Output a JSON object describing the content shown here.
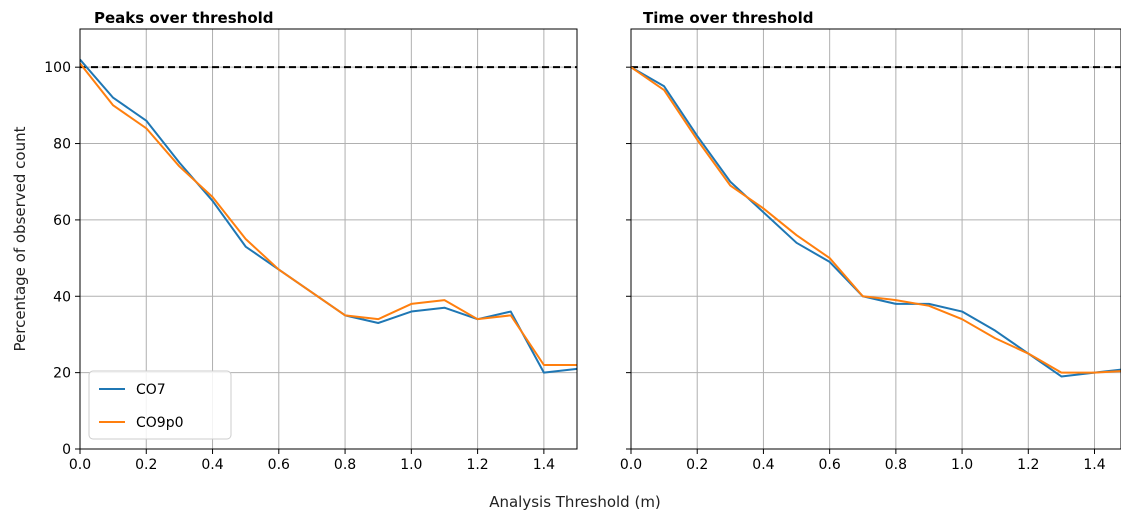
{
  "figure": {
    "shared_xlabel": "Analysis Threshold (m)",
    "shared_ylabel": "Percentage of observed count"
  },
  "legend": {
    "placement": "lower-left",
    "entries": [
      {
        "name": "CO7",
        "color": "#1f77b4"
      },
      {
        "name": "CO9p0",
        "color": "#ff7f0e"
      }
    ]
  },
  "chart_data": [
    {
      "type": "line",
      "title": "Peaks over threshold",
      "xlim": [
        0,
        1.5
      ],
      "ylim": [
        0,
        110
      ],
      "xticks": [
        "0.0",
        "0.2",
        "0.4",
        "0.6",
        "0.8",
        "1.0",
        "1.2",
        "1.4"
      ],
      "yticks": [
        "0",
        "20",
        "40",
        "60",
        "80",
        "100"
      ],
      "grid": true,
      "reference_line": {
        "y": 100,
        "style": "dashed",
        "color": "#000000"
      },
      "x": [
        0.0,
        0.1,
        0.2,
        0.3,
        0.4,
        0.5,
        0.6,
        0.7,
        0.8,
        0.9,
        1.0,
        1.1,
        1.2,
        1.3,
        1.4,
        1.5
      ],
      "series": [
        {
          "name": "CO7",
          "color": "#1f77b4",
          "values": [
            102,
            92,
            86,
            75,
            65,
            53,
            47,
            41,
            35,
            33,
            36,
            37,
            34,
            36,
            20,
            21
          ]
        },
        {
          "name": "CO9p0",
          "color": "#ff7f0e",
          "values": [
            101,
            90,
            84,
            74,
            66,
            55,
            47,
            41,
            35,
            34,
            38,
            39,
            34,
            35,
            22,
            22
          ]
        }
      ]
    },
    {
      "type": "line",
      "title": "Time over threshold",
      "xlim": [
        0,
        1.48
      ],
      "ylim": [
        0,
        110
      ],
      "xticks": [
        "0.0",
        "0.2",
        "0.4",
        "0.6",
        "0.8",
        "1.0",
        "1.2",
        "1.4"
      ],
      "yticks": [
        "0",
        "20",
        "40",
        "60",
        "80",
        "100"
      ],
      "grid": true,
      "reference_line": {
        "y": 100,
        "style": "dashed",
        "color": "#000000"
      },
      "x": [
        0.0,
        0.1,
        0.2,
        0.3,
        0.4,
        0.5,
        0.6,
        0.7,
        0.8,
        0.9,
        1.0,
        1.1,
        1.2,
        1.3,
        1.4,
        1.5
      ],
      "series": [
        {
          "name": "CO7",
          "color": "#1f77b4",
          "values": [
            100,
            95,
            82,
            70,
            62,
            54,
            49,
            40,
            38,
            38,
            36,
            31,
            25,
            19,
            20,
            21
          ]
        },
        {
          "name": "CO9p0",
          "color": "#ff7f0e",
          "values": [
            100,
            94,
            81,
            69,
            63,
            56,
            50,
            40,
            39,
            37.5,
            34,
            29,
            25,
            20,
            20,
            20.5
          ]
        }
      ]
    }
  ]
}
